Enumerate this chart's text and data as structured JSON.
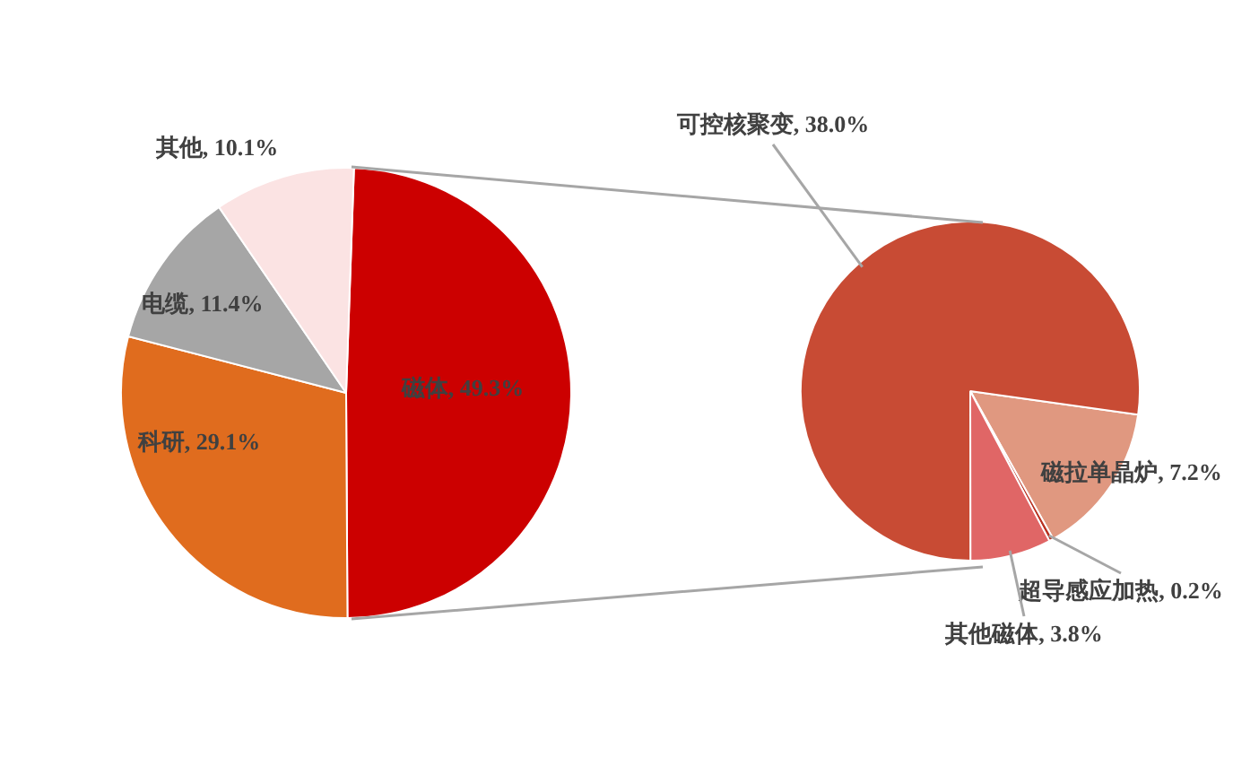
{
  "chart_data": [
    {
      "type": "pie",
      "categories": [
        "磁体",
        "科研",
        "电缆",
        "其他"
      ],
      "values": [
        49.3,
        29.1,
        11.4,
        10.1
      ],
      "colors": [
        "#cc0000",
        "#e06c1e",
        "#a6a6a6",
        "#fbe3e3"
      ],
      "value_labels": [
        "49.3%",
        "29.1%",
        "11.4%",
        "10.1%"
      ]
    },
    {
      "type": "pie",
      "categories": [
        "磁拉单晶炉",
        "超导感应加热",
        "其他磁体",
        "可控核聚变"
      ],
      "values": [
        7.2,
        0.2,
        3.8,
        38.0
      ],
      "colors": [
        "#e09880",
        "#b83020",
        "#e06666",
        "#c84b34"
      ],
      "value_labels": [
        "7.2%",
        "0.2%",
        "3.8%",
        "38.0%"
      ]
    }
  ]
}
